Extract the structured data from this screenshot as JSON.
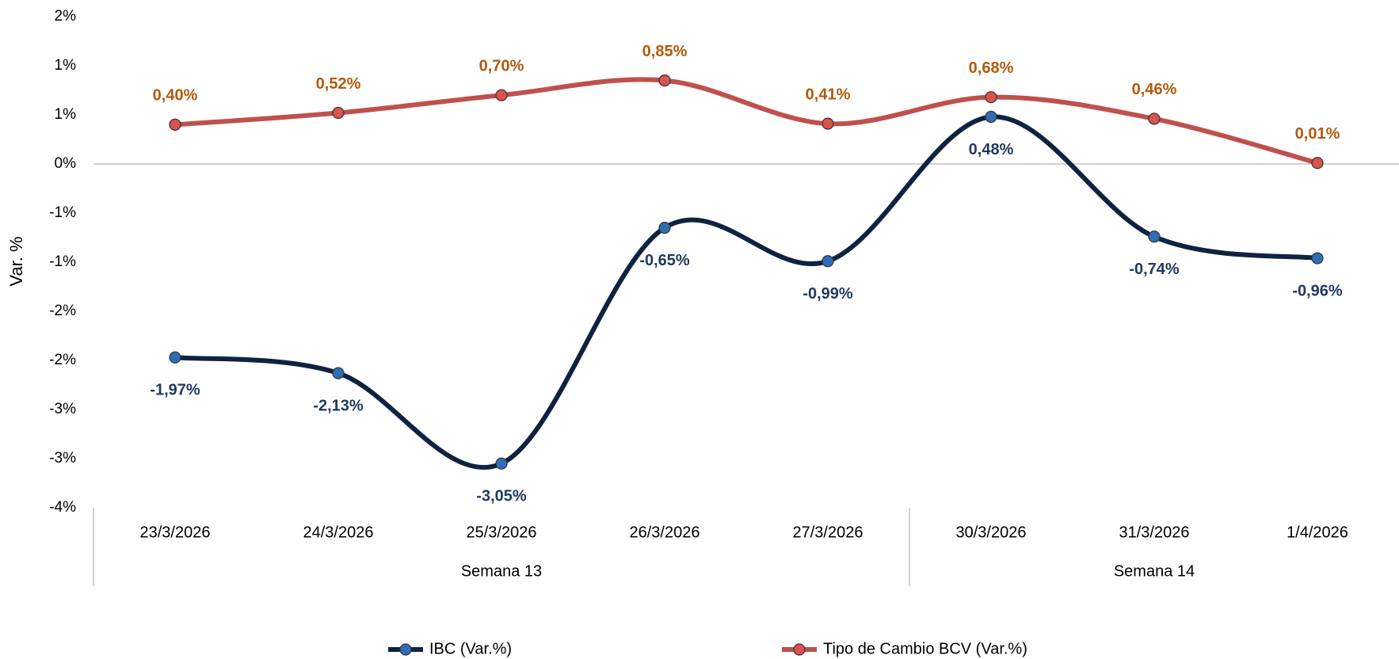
{
  "chart_data": {
    "type": "line",
    "y_label": "Var. %",
    "categories": [
      "23/3/2026",
      "24/3/2026",
      "25/3/2026",
      "26/3/2026",
      "27/3/2026",
      "30/3/2026",
      "31/3/2026",
      "1/4/2026"
    ],
    "groups": [
      {
        "name": "Semana 13",
        "count": 5
      },
      {
        "name": "Semana 14",
        "count": 3
      }
    ],
    "series": [
      {
        "name": "IBC (Var.%)",
        "color": "#0f2340",
        "label_color": "#1f3a5f",
        "values": [
          -1.97,
          -2.13,
          -3.05,
          -0.65,
          -0.99,
          0.48,
          -0.74,
          -0.96
        ],
        "value_labels": [
          "-1,97%",
          "-2,13%",
          "-3,05%",
          "-0,65%",
          "-0,99%",
          "0,48%",
          "-0,74%",
          "-0,96%"
        ]
      },
      {
        "name": "Tipo de Cambio BCV (Var.%)",
        "color": "#c0504d",
        "label_color": "#b35a0c",
        "values": [
          0.4,
          0.52,
          0.7,
          0.85,
          0.41,
          0.68,
          0.46,
          0.01
        ],
        "value_labels": [
          "0,40%",
          "0,52%",
          "0,70%",
          "0,85%",
          "0,41%",
          "0,68%",
          "0,46%",
          "0,01%"
        ]
      }
    ],
    "ylim": [
      -3.5,
      1.5
    ],
    "yticks": [
      {
        "value": 1.5,
        "label": "2%"
      },
      {
        "value": 1.0,
        "label": "1%"
      },
      {
        "value": 0.5,
        "label": "1%"
      },
      {
        "value": 0,
        "label": "0%"
      },
      {
        "value": -0.5,
        "label": "-1%"
      },
      {
        "value": -1.0,
        "label": "-1%"
      },
      {
        "value": -1.5,
        "label": "-2%"
      },
      {
        "value": -2.0,
        "label": "-2%"
      },
      {
        "value": -2.5,
        "label": "-3%"
      },
      {
        "value": -3.0,
        "label": "-3%"
      },
      {
        "value": -3.5,
        "label": "-4%"
      }
    ]
  }
}
